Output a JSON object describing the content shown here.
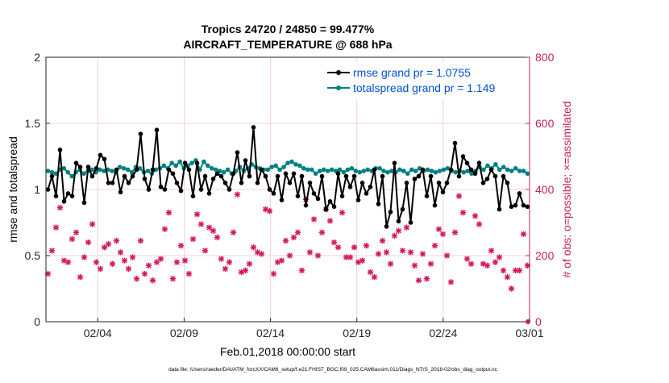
{
  "chart_data": {
    "type": "line",
    "title": "Tropics 24720 / 24850 = 99.477%",
    "subtitle": "AIRCRAFT_TEMPERATURE @ 688 hPa",
    "xlabel": "Feb.01,2018 00:00:00 start",
    "ylabel_left": "rmse and totalspread",
    "ylabel_right": "# of obs: o=possible; ×=assimilated",
    "footnote": "data file: /Users/raeder/DAI/ATM_forcXX/CAM6_setup/f.e21.FHIST_BGC.f09_025.CAM6assim.011/Diags_NTrS_2018-02/obs_diag_output.nc",
    "xlim": [
      0,
      28
    ],
    "ylim_left": [
      0,
      2
    ],
    "ylim_right": [
      0,
      800
    ],
    "x_ticks": [
      {
        "value": 3,
        "label": "02/04"
      },
      {
        "value": 8,
        "label": "02/09"
      },
      {
        "value": 13,
        "label": "02/14"
      },
      {
        "value": 18,
        "label": "02/19"
      },
      {
        "value": 23,
        "label": "02/24"
      },
      {
        "value": 28,
        "label": "03/01"
      }
    ],
    "y_ticks_left": [
      {
        "value": 0,
        "label": "0"
      },
      {
        "value": 0.5,
        "label": "0.5"
      },
      {
        "value": 1,
        "label": "1"
      },
      {
        "value": 1.5,
        "label": "1.5"
      },
      {
        "value": 2,
        "label": "2"
      }
    ],
    "y_ticks_right": [
      {
        "value": 0,
        "label": "0"
      },
      {
        "value": 200,
        "label": "200"
      },
      {
        "value": 400,
        "label": "400"
      },
      {
        "value": 600,
        "label": "600"
      },
      {
        "value": 800,
        "label": "800"
      }
    ],
    "colors": {
      "rmse": "#000000",
      "totalspread": "#008080",
      "obs": "#d6185e",
      "right_axis": "#c81e5a",
      "legend_text": "#0050d0"
    },
    "legend": [
      {
        "label": "rmse grand pr = 1.0755",
        "series": "rmse"
      },
      {
        "label": "totalspread grand pr = 1.149",
        "series": "totalspread"
      }
    ],
    "rmse": [
      1.0,
      1.1,
      0.95,
      1.3,
      0.91,
      0.97,
      0.95,
      1.2,
      1.17,
      0.9,
      1.17,
      1.1,
      1.16,
      1.26,
      1.23,
      1.05,
      1.05,
      1.15,
      0.98,
      1.1,
      1.05,
      1.1,
      1.15,
      1.42,
      1.08,
      1.0,
      1.15,
      1.45,
      1.02,
      1.0,
      1.15,
      1.12,
      1.05,
      0.99,
      1.2,
      1.15,
      0.95,
      1.2,
      1.0,
      1.1,
      0.97,
      1.08,
      1.12,
      1.1,
      1.05,
      1.0,
      1.12,
      1.28,
      1.05,
      1.22,
      1.1,
      1.47,
      1.05,
      1.15,
      1.1,
      1.0,
      0.97,
      1.1,
      0.92,
      1.12,
      1.05,
      1.12,
      0.95,
      1.1,
      0.88,
      1.05,
      0.97,
      0.93,
      1.1,
      0.85,
      0.91,
      0.87,
      1.12,
      0.95,
      1.1,
      1.02,
      1.1,
      0.92,
      1.05,
      0.97,
      1.02,
      1.15,
      0.89,
      1.1,
      0.72,
      0.83,
      1.2,
      0.76,
      0.85,
      1.05,
      0.75,
      1.08,
      1.1,
      1.15,
      0.95,
      1.1,
      0.88,
      1.05,
      0.98,
      1.05,
      1.15,
      1.35,
      1.1,
      1.25,
      1.2,
      1.15,
      1.12,
      1.2,
      1.05,
      1.08,
      1.15,
      1.1,
      0.85,
      1.1,
      1.05,
      0.87,
      0.88,
      0.97,
      0.88,
      0.87
    ],
    "totalspread": [
      1.14,
      1.13,
      1.12,
      1.15,
      1.16,
      1.13,
      1.1,
      1.13,
      1.15,
      1.12,
      1.14,
      1.15,
      1.13,
      1.15,
      1.14,
      1.15,
      1.14,
      1.13,
      1.17,
      1.16,
      1.15,
      1.13,
      1.17,
      1.16,
      1.13,
      1.14,
      1.12,
      1.15,
      1.16,
      1.18,
      1.16,
      1.2,
      1.18,
      1.21,
      1.16,
      1.18,
      1.2,
      1.22,
      1.15,
      1.21,
      1.18,
      1.16,
      1.15,
      1.14,
      1.13,
      1.15,
      1.12,
      1.14,
      1.17,
      1.14,
      1.16,
      1.19,
      1.17,
      1.16,
      1.15,
      1.15,
      1.17,
      1.18,
      1.15,
      1.17,
      1.2,
      1.21,
      1.19,
      1.18,
      1.16,
      1.15,
      1.15,
      1.12,
      1.14,
      1.15,
      1.14,
      1.15,
      1.14,
      1.15,
      1.13,
      1.15,
      1.16,
      1.14,
      1.13,
      1.14,
      1.15,
      1.14,
      1.16,
      1.16,
      1.14,
      1.13,
      1.14,
      1.13,
      1.15,
      1.14,
      1.12,
      1.15,
      1.14,
      1.16,
      1.14,
      1.15,
      1.14,
      1.13,
      1.14,
      1.15,
      1.16,
      1.14,
      1.13,
      1.14,
      1.13,
      1.14,
      1.12,
      1.14,
      1.17,
      1.15,
      1.18,
      1.16,
      1.19,
      1.15,
      1.17,
      1.15,
      1.14,
      1.16,
      1.14,
      1.14,
      1.12
    ],
    "assimilated": [
      145,
      215,
      285,
      345,
      185,
      180,
      250,
      270,
      135,
      195,
      240,
      295,
      180,
      160,
      225,
      235,
      175,
      245,
      210,
      185,
      160,
      195,
      130,
      245,
      145,
      170,
      125,
      180,
      190,
      280,
      330,
      130,
      180,
      230,
      185,
      145,
      250,
      325,
      295,
      215,
      285,
      275,
      255,
      190,
      160,
      180,
      270,
      385,
      150,
      155,
      175,
      225,
      210,
      205,
      340,
      335,
      145,
      180,
      185,
      245,
      200,
      255,
      270,
      155,
      370,
      210,
      310,
      200,
      270,
      340,
      305,
      240,
      225,
      330,
      195,
      195,
      225,
      180,
      185,
      230,
      150,
      135,
      205,
      245,
      210,
      175,
      260,
      275,
      215,
      285,
      210,
      170,
      125,
      205,
      130,
      175,
      230,
      280,
      265,
      200,
      120,
      270,
      380,
      330,
      190,
      175,
      320,
      295,
      175,
      170,
      215,
      180,
      195,
      155,
      135,
      100,
      155,
      155,
      265,
      170
    ]
  }
}
